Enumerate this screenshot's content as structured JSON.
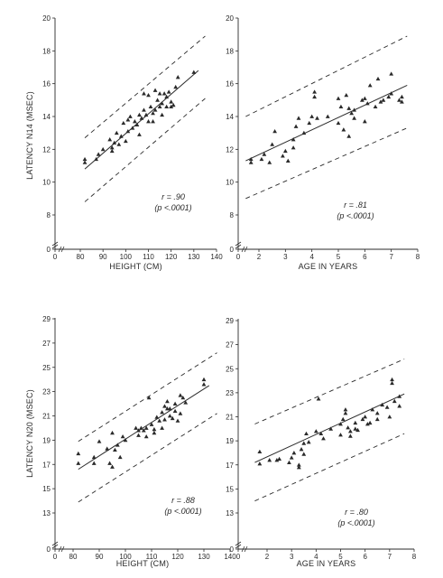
{
  "colors": {
    "ink": "#2a2a2a",
    "background": "#ffffff"
  },
  "chart_data": [
    {
      "type": "scatter",
      "title": "",
      "xlabel": "HEIGHT (CM)",
      "ylabel": "LATENCY N14 (MSEC)",
      "xlim": [
        0,
        140
      ],
      "ylim": [
        0,
        20
      ],
      "x_ticks": [
        0,
        80,
        90,
        100,
        110,
        120,
        130,
        140
      ],
      "y_ticks": [
        0,
        8,
        10,
        12,
        14,
        16,
        18,
        20
      ],
      "axis_break": true,
      "grid": false,
      "stat_r": "r = .90",
      "stat_p": "(p <.0001)",
      "fit_line": {
        "x": [
          82,
          132
        ],
        "y": [
          10.8,
          16.8
        ]
      },
      "confidence_lines": [
        {
          "x": [
            82,
            135
          ],
          "y": [
            12.7,
            18.9
          ]
        },
        {
          "x": [
            82,
            135
          ],
          "y": [
            8.8,
            15.1
          ]
        }
      ],
      "points": [
        [
          82,
          11.4
        ],
        [
          82,
          11.2
        ],
        [
          87,
          11.4
        ],
        [
          88,
          11.7
        ],
        [
          90,
          12.0
        ],
        [
          93,
          12.6
        ],
        [
          94,
          12.1
        ],
        [
          94,
          11.9
        ],
        [
          95,
          12.4
        ],
        [
          96,
          13.0
        ],
        [
          97,
          12.3
        ],
        [
          98,
          12.8
        ],
        [
          99,
          13.6
        ],
        [
          100,
          12.5
        ],
        [
          101,
          13.8
        ],
        [
          101,
          13.1
        ],
        [
          102,
          14.0
        ],
        [
          103,
          13.3
        ],
        [
          104,
          13.7
        ],
        [
          105,
          13.5
        ],
        [
          106,
          12.9
        ],
        [
          106,
          14.1
        ],
        [
          107,
          13.9
        ],
        [
          108,
          14.4
        ],
        [
          108,
          15.4
        ],
        [
          109,
          14.1
        ],
        [
          110,
          15.3
        ],
        [
          110,
          13.7
        ],
        [
          111,
          14.6
        ],
        [
          112,
          13.7
        ],
        [
          112,
          14.2
        ],
        [
          113,
          15.6
        ],
        [
          113,
          14.4
        ],
        [
          114,
          15.0
        ],
        [
          115,
          14.6
        ],
        [
          115,
          15.4
        ],
        [
          116,
          14.8
        ],
        [
          116,
          14.1
        ],
        [
          117,
          15.4
        ],
        [
          118,
          15.2
        ],
        [
          118,
          14.6
        ],
        [
          119,
          15.5
        ],
        [
          120,
          14.9
        ],
        [
          120,
          14.6
        ],
        [
          121,
          14.7
        ],
        [
          122,
          15.8
        ],
        [
          123,
          16.4
        ],
        [
          130,
          16.7
        ]
      ]
    },
    {
      "type": "scatter",
      "title": "",
      "xlabel": "AGE IN YEARS",
      "ylabel": "",
      "xlim": [
        0,
        8
      ],
      "ylim": [
        0,
        20
      ],
      "x_ticks": [
        0,
        2,
        3,
        4,
        5,
        6,
        7,
        8
      ],
      "y_ticks": [
        0,
        8,
        10,
        12,
        14,
        16,
        18,
        20
      ],
      "axis_break": true,
      "grid": false,
      "stat_r": "r = .81",
      "stat_p": "(p <.0001)",
      "fit_line": {
        "x": [
          1.5,
          7.6
        ],
        "y": [
          11.3,
          15.9
        ]
      },
      "confidence_lines": [
        {
          "x": [
            1.5,
            7.6
          ],
          "y": [
            14.0,
            18.9
          ]
        },
        {
          "x": [
            1.5,
            7.6
          ],
          "y": [
            9.0,
            13.3
          ]
        }
      ],
      "points": [
        [
          1.7,
          11.4
        ],
        [
          1.7,
          11.2
        ],
        [
          2.1,
          11.4
        ],
        [
          2.2,
          11.7
        ],
        [
          2.4,
          11.2
        ],
        [
          2.5,
          12.3
        ],
        [
          2.6,
          13.1
        ],
        [
          2.9,
          11.6
        ],
        [
          3.0,
          11.9
        ],
        [
          3.1,
          11.3
        ],
        [
          3.3,
          12.1
        ],
        [
          3.3,
          12.6
        ],
        [
          3.4,
          13.4
        ],
        [
          3.5,
          13.9
        ],
        [
          3.7,
          13.0
        ],
        [
          3.9,
          13.6
        ],
        [
          4.0,
          14.0
        ],
        [
          4.1,
          15.5
        ],
        [
          4.1,
          15.2
        ],
        [
          4.2,
          13.9
        ],
        [
          4.6,
          14.0
        ],
        [
          5.0,
          15.1
        ],
        [
          5.0,
          13.6
        ],
        [
          5.1,
          14.6
        ],
        [
          5.2,
          13.2
        ],
        [
          5.3,
          15.3
        ],
        [
          5.4,
          14.5
        ],
        [
          5.4,
          12.8
        ],
        [
          5.5,
          14.2
        ],
        [
          5.6,
          14.4
        ],
        [
          5.6,
          13.9
        ],
        [
          5.9,
          15.0
        ],
        [
          6.0,
          15.1
        ],
        [
          6.0,
          13.7
        ],
        [
          6.1,
          14.8
        ],
        [
          6.2,
          15.9
        ],
        [
          6.4,
          14.6
        ],
        [
          6.5,
          16.3
        ],
        [
          6.6,
          14.9
        ],
        [
          6.7,
          15.0
        ],
        [
          6.9,
          15.2
        ],
        [
          7.0,
          16.6
        ],
        [
          7.0,
          15.4
        ],
        [
          7.3,
          15.0
        ],
        [
          7.4,
          14.9
        ],
        [
          7.4,
          15.2
        ]
      ]
    },
    {
      "type": "scatter",
      "title": "",
      "xlabel": "HEIGHT (CM)",
      "ylabel": "LATENCY N20 (MSEC)",
      "xlim": [
        0,
        140
      ],
      "ylim": [
        0,
        29
      ],
      "x_ticks": [
        0,
        80,
        90,
        100,
        110,
        120,
        130,
        140
      ],
      "y_ticks": [
        0,
        13,
        15,
        17,
        19,
        21,
        23,
        25,
        27,
        29
      ],
      "axis_break": true,
      "grid": false,
      "stat_r": "r = .88",
      "stat_p": "(p <.0001)",
      "fit_line": {
        "x": [
          82,
          132
        ],
        "y": [
          16.6,
          23.5
        ]
      },
      "confidence_lines": [
        {
          "x": [
            82,
            135
          ],
          "y": [
            18.9,
            26.2
          ]
        },
        {
          "x": [
            82,
            135
          ],
          "y": [
            13.9,
            21.2
          ]
        }
      ],
      "points": [
        [
          82,
          17.9
        ],
        [
          82,
          17.1
        ],
        [
          88,
          17.1
        ],
        [
          88,
          17.6
        ],
        [
          90,
          18.9
        ],
        [
          93,
          18.3
        ],
        [
          94,
          17.1
        ],
        [
          95,
          19.6
        ],
        [
          95,
          16.8
        ],
        [
          96,
          18.2
        ],
        [
          97,
          18.6
        ],
        [
          98,
          17.6
        ],
        [
          99,
          19.3
        ],
        [
          100,
          19.0
        ],
        [
          104,
          20.0
        ],
        [
          105,
          19.4
        ],
        [
          105,
          19.8
        ],
        [
          106,
          20.0
        ],
        [
          107,
          19.8
        ],
        [
          108,
          20.0
        ],
        [
          108,
          19.3
        ],
        [
          109,
          22.5
        ],
        [
          110,
          20.3
        ],
        [
          111,
          19.6
        ],
        [
          111,
          19.9
        ],
        [
          112,
          20.9
        ],
        [
          113,
          20.6
        ],
        [
          114,
          20.0
        ],
        [
          114,
          21.3
        ],
        [
          115,
          21.8
        ],
        [
          115,
          20.7
        ],
        [
          116,
          21.6
        ],
        [
          116,
          22.2
        ],
        [
          117,
          21.6
        ],
        [
          117,
          21.0
        ],
        [
          118,
          20.8
        ],
        [
          119,
          21.4
        ],
        [
          119,
          22.0
        ],
        [
          120,
          20.6
        ],
        [
          121,
          22.7
        ],
        [
          121,
          21.2
        ],
        [
          122,
          22.5
        ],
        [
          123,
          22.1
        ],
        [
          130,
          23.6
        ],
        [
          130,
          24.0
        ]
      ]
    },
    {
      "type": "scatter",
      "title": "",
      "xlabel": "AGE IN YEARS",
      "ylabel": "",
      "xlim": [
        0,
        8
      ],
      "ylim": [
        0,
        29
      ],
      "x_ticks": [
        0,
        2,
        3,
        4,
        5,
        6,
        7,
        8
      ],
      "y_ticks": [
        0,
        13,
        15,
        17,
        19,
        21,
        23,
        25,
        27,
        29
      ],
      "axis_break": true,
      "grid": false,
      "stat_r": "r = .80",
      "stat_p": "(p <.0001)",
      "fit_line": {
        "x": [
          1.5,
          7.6
        ],
        "y": [
          17.2,
          22.9
        ]
      },
      "confidence_lines": [
        {
          "x": [
            1.5,
            7.6
          ],
          "y": [
            20.4,
            25.8
          ]
        },
        {
          "x": [
            1.5,
            7.6
          ],
          "y": [
            14.0,
            19.6
          ]
        }
      ],
      "points": [
        [
          1.7,
          18.1
        ],
        [
          1.7,
          17.1
        ],
        [
          2.1,
          17.4
        ],
        [
          2.4,
          17.4
        ],
        [
          2.5,
          17.5
        ],
        [
          2.9,
          17.2
        ],
        [
          3.0,
          17.6
        ],
        [
          3.1,
          18.0
        ],
        [
          3.3,
          17.0
        ],
        [
          3.3,
          16.8
        ],
        [
          3.4,
          18.3
        ],
        [
          3.5,
          18.8
        ],
        [
          3.5,
          17.9
        ],
        [
          3.6,
          19.6
        ],
        [
          3.7,
          18.9
        ],
        [
          4.0,
          19.8
        ],
        [
          4.1,
          22.5
        ],
        [
          4.2,
          19.6
        ],
        [
          4.3,
          19.2
        ],
        [
          4.6,
          20.0
        ],
        [
          5.0,
          20.4
        ],
        [
          5.0,
          19.5
        ],
        [
          5.1,
          20.8
        ],
        [
          5.2,
          21.3
        ],
        [
          5.2,
          21.6
        ],
        [
          5.3,
          20.1
        ],
        [
          5.4,
          19.4
        ],
        [
          5.4,
          19.8
        ],
        [
          5.6,
          20.5
        ],
        [
          5.6,
          20.0
        ],
        [
          5.7,
          19.9
        ],
        [
          5.9,
          20.8
        ],
        [
          6.0,
          21.0
        ],
        [
          6.1,
          20.4
        ],
        [
          6.2,
          20.5
        ],
        [
          6.3,
          21.6
        ],
        [
          6.5,
          21.3
        ],
        [
          6.5,
          20.8
        ],
        [
          6.7,
          22.0
        ],
        [
          6.9,
          21.8
        ],
        [
          7.0,
          21.0
        ],
        [
          7.1,
          23.8
        ],
        [
          7.1,
          24.1
        ],
        [
          7.2,
          22.3
        ],
        [
          7.4,
          22.7
        ],
        [
          7.4,
          21.9
        ]
      ]
    }
  ]
}
